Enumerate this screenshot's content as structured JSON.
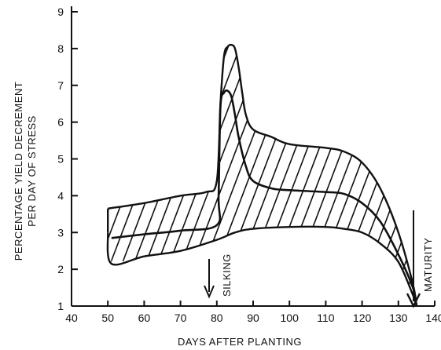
{
  "chart_data": {
    "type": "line",
    "xlabel": "DAYS AFTER PLANTING",
    "ylabel": [
      "PERCENTAGE YIELD DECREMENT",
      "PER DAY OF STRESS"
    ],
    "xlim": [
      40,
      140
    ],
    "ylim": [
      1,
      9
    ],
    "xticks": [
      40,
      50,
      60,
      70,
      80,
      90,
      100,
      110,
      120,
      130,
      140
    ],
    "yticks": [
      1,
      2,
      3,
      4,
      5,
      6,
      7,
      8,
      9
    ],
    "grid": false,
    "band": {
      "upper": {
        "x": [
          50,
          60,
          70,
          77,
          80,
          81,
          82,
          83,
          84,
          85,
          86,
          87,
          88,
          90,
          95,
          100,
          110,
          115,
          120,
          125,
          130,
          134,
          135
        ],
        "y": [
          3.65,
          3.8,
          4.0,
          4.1,
          4.4,
          6.5,
          7.8,
          8.05,
          8.1,
          8.0,
          7.5,
          6.8,
          6.2,
          5.8,
          5.6,
          5.4,
          5.3,
          5.2,
          4.9,
          4.2,
          3.0,
          1.6,
          1.0
        ]
      },
      "lower": {
        "x": [
          50,
          51,
          60,
          70,
          80,
          85,
          90,
          100,
          110,
          115,
          120,
          125,
          130,
          134,
          135
        ],
        "y": [
          3.0,
          2.15,
          2.35,
          2.5,
          2.8,
          3.0,
          3.1,
          3.15,
          3.15,
          3.1,
          3.0,
          2.7,
          2.2,
          1.3,
          1.0
        ]
      }
    },
    "series": [
      {
        "x": [
          51,
          60,
          70,
          80,
          80.5,
          81,
          82,
          83,
          84,
          85,
          86,
          88,
          90,
          95,
          100,
          110,
          115,
          120,
          125,
          130,
          134,
          135
        ],
        "y": [
          2.85,
          2.95,
          3.05,
          3.2,
          4.0,
          6.4,
          6.8,
          6.85,
          6.7,
          6.2,
          5.6,
          4.8,
          4.4,
          4.2,
          4.15,
          4.1,
          4.05,
          3.8,
          3.3,
          2.4,
          1.5,
          1.0
        ]
      }
    ],
    "annotations": [
      {
        "text": "SILKING",
        "x": 80
      },
      {
        "text": "MATURITY",
        "x": 135
      }
    ],
    "colors": {
      "ink": "#111111",
      "background": "#ffffff"
    }
  }
}
